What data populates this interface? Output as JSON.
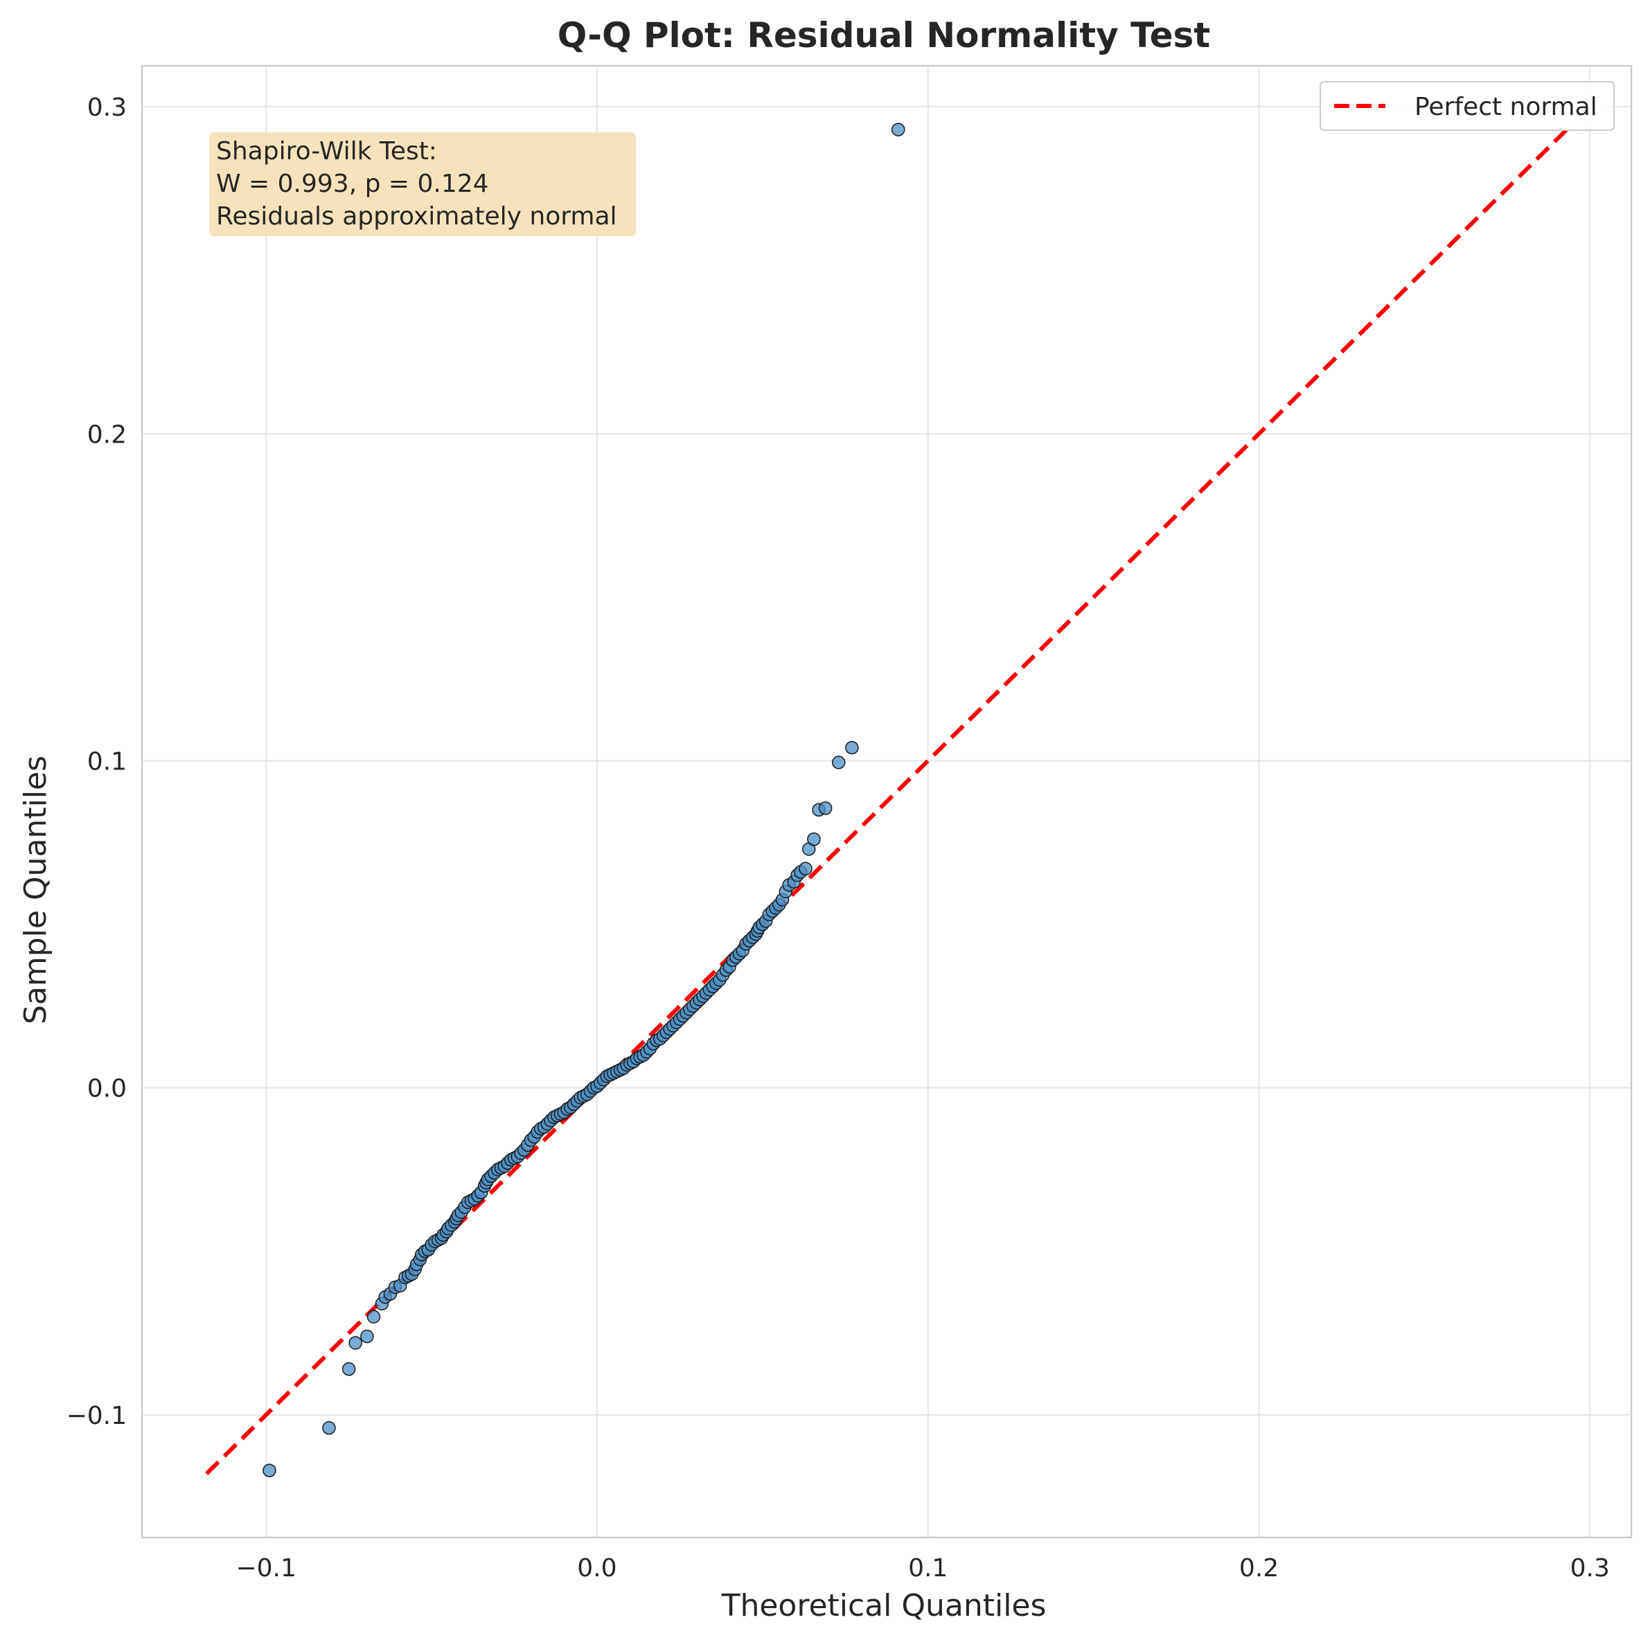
{
  "chart_data": {
    "type": "scatter",
    "title": "Q-Q Plot: Residual Normality Test",
    "xlabel": "Theoretical Quantiles",
    "ylabel": "Sample Quantiles",
    "xlim": [
      -0.1375,
      0.3125
    ],
    "ylim": [
      -0.1375,
      0.3125
    ],
    "xticks": [
      -0.1,
      0.0,
      0.1,
      0.2,
      0.3
    ],
    "xtick_labels": [
      "−0.1",
      "0.0",
      "0.1",
      "0.2",
      "0.3"
    ],
    "yticks": [
      -0.1,
      0.0,
      0.1,
      0.2,
      0.3
    ],
    "ytick_labels": [
      "−0.1",
      "0.0",
      "0.1",
      "0.2",
      "0.3"
    ],
    "grid": true,
    "legend": {
      "placement": "top-right",
      "entries": [
        "Perfect normal"
      ]
    },
    "reference_line": {
      "name": "Perfect normal",
      "color": "#ff0000",
      "style": "dashed",
      "x": [
        -0.118,
        0.293
      ],
      "y": [
        -0.118,
        0.293
      ]
    },
    "annotation": {
      "lines": [
        "Shapiro-Wilk Test:",
        "W = 0.993, p = 0.124",
        "Residuals approximately normal"
      ],
      "background": "#f5deb3"
    },
    "point_color": "#4c8fc4",
    "points": [
      [
        -0.099,
        -0.117
      ],
      [
        -0.081,
        -0.104
      ],
      [
        -0.075,
        -0.086
      ],
      [
        -0.073,
        -0.078
      ],
      [
        -0.0695,
        -0.076
      ],
      [
        -0.0675,
        -0.07
      ],
      [
        -0.065,
        -0.066
      ],
      [
        -0.064,
        -0.064
      ],
      [
        -0.0625,
        -0.063
      ],
      [
        -0.061,
        -0.061
      ],
      [
        -0.0595,
        -0.0605
      ],
      [
        -0.058,
        -0.058
      ],
      [
        -0.057,
        -0.0575
      ],
      [
        -0.056,
        -0.057
      ],
      [
        -0.055,
        -0.0555
      ],
      [
        -0.0545,
        -0.054
      ],
      [
        -0.0535,
        -0.0525
      ],
      [
        -0.053,
        -0.051
      ],
      [
        -0.052,
        -0.05
      ],
      [
        -0.051,
        -0.0495
      ],
      [
        -0.05,
        -0.048
      ],
      [
        -0.049,
        -0.047
      ],
      [
        -0.048,
        -0.0465
      ],
      [
        -0.047,
        -0.046
      ],
      [
        -0.0465,
        -0.045
      ],
      [
        -0.0455,
        -0.044
      ],
      [
        -0.045,
        -0.043
      ],
      [
        -0.044,
        -0.042
      ],
      [
        -0.043,
        -0.041
      ],
      [
        -0.0425,
        -0.04
      ],
      [
        -0.042,
        -0.039
      ],
      [
        -0.041,
        -0.038
      ],
      [
        -0.04,
        -0.0365
      ],
      [
        -0.039,
        -0.035
      ],
      [
        -0.038,
        -0.0345
      ],
      [
        -0.037,
        -0.034
      ],
      [
        -0.036,
        -0.033
      ],
      [
        -0.035,
        -0.032
      ],
      [
        -0.034,
        -0.03
      ],
      [
        -0.0335,
        -0.029
      ],
      [
        -0.033,
        -0.028
      ],
      [
        -0.032,
        -0.027
      ],
      [
        -0.031,
        -0.026
      ],
      [
        -0.03,
        -0.025
      ],
      [
        -0.029,
        -0.0245
      ],
      [
        -0.028,
        -0.024
      ],
      [
        -0.027,
        -0.023
      ],
      [
        -0.026,
        -0.022
      ],
      [
        -0.025,
        -0.0215
      ],
      [
        -0.024,
        -0.021
      ],
      [
        -0.023,
        -0.02
      ],
      [
        -0.022,
        -0.019
      ],
      [
        -0.021,
        -0.0175
      ],
      [
        -0.02,
        -0.016
      ],
      [
        -0.019,
        -0.015
      ],
      [
        -0.018,
        -0.0135
      ],
      [
        -0.017,
        -0.0125
      ],
      [
        -0.016,
        -0.012
      ],
      [
        -0.015,
        -0.011
      ],
      [
        -0.014,
        -0.01
      ],
      [
        -0.013,
        -0.009
      ],
      [
        -0.012,
        -0.0085
      ],
      [
        -0.011,
        -0.008
      ],
      [
        -0.01,
        -0.0075
      ],
      [
        -0.009,
        -0.0065
      ],
      [
        -0.008,
        -0.006
      ],
      [
        -0.007,
        -0.005
      ],
      [
        -0.006,
        -0.004
      ],
      [
        -0.005,
        -0.003
      ],
      [
        -0.004,
        -0.0025
      ],
      [
        -0.003,
        -0.002
      ],
      [
        -0.002,
        -0.001
      ],
      [
        -0.001,
        0.0
      ],
      [
        0.0,
        0.0005
      ],
      [
        0.001,
        0.0015
      ],
      [
        0.002,
        0.0025
      ],
      [
        0.003,
        0.0035
      ],
      [
        0.004,
        0.004
      ],
      [
        0.005,
        0.0045
      ],
      [
        0.006,
        0.005
      ],
      [
        0.007,
        0.0055
      ],
      [
        0.008,
        0.006
      ],
      [
        0.009,
        0.007
      ],
      [
        0.01,
        0.0075
      ],
      [
        0.011,
        0.008
      ],
      [
        0.012,
        0.009
      ],
      [
        0.013,
        0.0095
      ],
      [
        0.014,
        0.01
      ],
      [
        0.015,
        0.011
      ],
      [
        0.016,
        0.012
      ],
      [
        0.017,
        0.0135
      ],
      [
        0.018,
        0.0145
      ],
      [
        0.019,
        0.015
      ],
      [
        0.02,
        0.016
      ],
      [
        0.021,
        0.017
      ],
      [
        0.022,
        0.018
      ],
      [
        0.023,
        0.019
      ],
      [
        0.024,
        0.02
      ],
      [
        0.025,
        0.021
      ],
      [
        0.026,
        0.022
      ],
      [
        0.027,
        0.023
      ],
      [
        0.028,
        0.024
      ],
      [
        0.029,
        0.025
      ],
      [
        0.03,
        0.026
      ],
      [
        0.031,
        0.027
      ],
      [
        0.032,
        0.028
      ],
      [
        0.033,
        0.029
      ],
      [
        0.034,
        0.03
      ],
      [
        0.035,
        0.031
      ],
      [
        0.036,
        0.032
      ],
      [
        0.037,
        0.033
      ],
      [
        0.038,
        0.0345
      ],
      [
        0.039,
        0.036
      ],
      [
        0.04,
        0.037
      ],
      [
        0.041,
        0.039
      ],
      [
        0.042,
        0.04
      ],
      [
        0.043,
        0.041
      ],
      [
        0.044,
        0.042
      ],
      [
        0.045,
        0.044
      ],
      [
        0.046,
        0.045
      ],
      [
        0.047,
        0.046
      ],
      [
        0.048,
        0.047
      ],
      [
        0.0485,
        0.048
      ],
      [
        0.049,
        0.049
      ],
      [
        0.05,
        0.05
      ],
      [
        0.051,
        0.051
      ],
      [
        0.052,
        0.053
      ],
      [
        0.053,
        0.054
      ],
      [
        0.054,
        0.055
      ],
      [
        0.055,
        0.056
      ],
      [
        0.056,
        0.0575
      ],
      [
        0.057,
        0.06
      ],
      [
        0.058,
        0.062
      ],
      [
        0.0595,
        0.063
      ],
      [
        0.0605,
        0.065
      ],
      [
        0.0615,
        0.066
      ],
      [
        0.063,
        0.067
      ],
      [
        0.064,
        0.073
      ],
      [
        0.0655,
        0.076
      ],
      [
        0.067,
        0.085
      ],
      [
        0.069,
        0.0855
      ],
      [
        0.073,
        0.0995
      ],
      [
        0.077,
        0.104
      ],
      [
        0.091,
        0.293
      ]
    ]
  }
}
